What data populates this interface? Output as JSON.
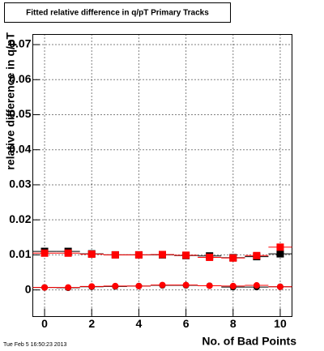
{
  "chart_data": {
    "type": "scatter",
    "title": "Fitted relative difference in q/pT Primary Tracks",
    "x_label": "No. of Bad Points",
    "y_label": "relative difference in q/pT",
    "annotation": "Tue Feb  5 16:50:23 2013",
    "x": [
      0,
      1,
      2,
      3,
      4,
      5,
      6,
      7,
      8,
      9,
      10
    ],
    "series": [
      {
        "color": "#000000",
        "marker": "square",
        "values": [
          0.011,
          0.011,
          0.0103,
          0.01,
          0.01,
          0.01,
          0.0098,
          0.0097,
          0.0092,
          0.0095,
          0.0103
        ]
      },
      {
        "color": "#ff0000",
        "marker": "square",
        "values": [
          0.0105,
          0.0105,
          0.0102,
          0.01,
          0.01,
          0.0101,
          0.0099,
          0.0093,
          0.0091,
          0.0098,
          0.0122
        ]
      },
      {
        "color": "#000000",
        "marker": "circle",
        "values": [
          0.0007,
          0.0006,
          0.0009,
          0.001,
          0.0011,
          0.0013,
          0.0013,
          0.0012,
          0.0008,
          0.0008,
          0.0009
        ]
      },
      {
        "color": "#ff0000",
        "marker": "circle",
        "values": [
          0.0007,
          0.0007,
          0.001,
          0.0011,
          0.0011,
          0.0014,
          0.0014,
          0.0012,
          0.0011,
          0.0013,
          0.0009
        ]
      }
    ],
    "xlim": [
      -0.5,
      10.5
    ],
    "ylim": [
      -0.0076,
      0.0729
    ],
    "xticks": [
      0,
      2,
      4,
      6,
      8,
      10
    ],
    "yticks": [
      0,
      0.01,
      0.02,
      0.03,
      0.04,
      0.05,
      0.06,
      0.07
    ],
    "grid": true
  }
}
